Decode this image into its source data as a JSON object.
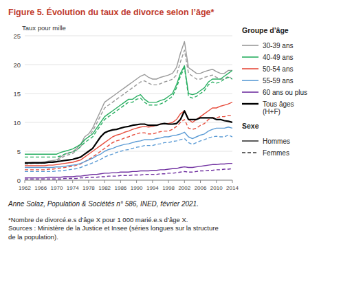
{
  "chart_data": {
    "type": "line",
    "title": "Figure 5. Évolution du taux de divorce selon l’âge*",
    "title_color": "#c0392b",
    "y_label": "Taux pour mille",
    "footnotes": [
      "Anne Solaz, Population & Sociétés n° 586, INED, février 2021.",
      "*Nombre de divorcé.e.s d’âge X pour 1 000 marié.e.s d’âge X.\nSources : Ministère de la Justice et Insee (séries longues sur la structure\nde la population)."
    ],
    "legend_titles": [
      "Groupe d’âge",
      "Sexe"
    ],
    "legend_color": "#333333",
    "grid": true,
    "xlim": [
      1962,
      2014
    ],
    "xticks": [
      1962,
      1966,
      1970,
      1974,
      1978,
      1982,
      1986,
      1990,
      1994,
      1998,
      2002,
      2006,
      2010,
      2014
    ],
    "ylim": [
      0,
      25
    ],
    "yticks": [
      0,
      5,
      10,
      15,
      20,
      25
    ],
    "x": [
      1962,
      1963,
      1964,
      1965,
      1966,
      1967,
      1968,
      1969,
      1970,
      1971,
      1972,
      1973,
      1974,
      1975,
      1976,
      1977,
      1978,
      1979,
      1980,
      1981,
      1982,
      1983,
      1984,
      1985,
      1986,
      1987,
      1988,
      1989,
      1990,
      1991,
      1992,
      1993,
      1994,
      1995,
      1996,
      1997,
      1998,
      1999,
      2000,
      2001,
      2002,
      2003,
      2004,
      2005,
      2006,
      2007,
      2008,
      2009,
      2010,
      2011,
      2012,
      2013,
      2014
    ],
    "series": [
      {
        "name": "30-39 ans",
        "sex": "Hommes",
        "color": "#999999",
        "line_style": "solid",
        "values": [
          3.0,
          3.0,
          3.1,
          3.1,
          3.1,
          3.2,
          3.3,
          3.4,
          3.5,
          4.0,
          4.5,
          4.7,
          4.9,
          5.5,
          6.2,
          7.5,
          8.0,
          9.0,
          10.5,
          12.0,
          13.5,
          14.0,
          14.5,
          15.0,
          15.5,
          16.0,
          16.5,
          17.0,
          17.5,
          18.0,
          18.3,
          17.8,
          17.5,
          17.5,
          17.8,
          18.0,
          18.2,
          18.5,
          19.5,
          22.0,
          24.0,
          19.5,
          19.0,
          18.5,
          18.5,
          18.8,
          19.0,
          19.2,
          18.8,
          18.5,
          18.5,
          19.0,
          19.0
        ]
      },
      {
        "name": "30-39 ans",
        "sex": "Femmes",
        "color": "#999999",
        "line_style": "dashed",
        "values": [
          2.8,
          2.8,
          2.9,
          2.9,
          2.9,
          3.0,
          3.1,
          3.2,
          3.3,
          3.7,
          4.2,
          4.4,
          4.6,
          5.2,
          5.8,
          7.0,
          7.5,
          8.5,
          9.8,
          11.2,
          12.5,
          13.0,
          13.5,
          14.0,
          14.5,
          15.0,
          15.5,
          16.0,
          16.5,
          17.0,
          17.2,
          16.8,
          16.5,
          16.5,
          16.7,
          17.0,
          17.2,
          17.5,
          18.2,
          20.5,
          22.5,
          18.5,
          18.0,
          17.5,
          17.5,
          17.8,
          18.0,
          18.2,
          17.8,
          17.5,
          17.5,
          18.0,
          17.5
        ]
      },
      {
        "name": "40-49 ans",
        "sex": "Hommes",
        "color": "#27ae60",
        "line_style": "solid",
        "values": [
          4.5,
          4.5,
          4.5,
          4.5,
          4.5,
          4.5,
          4.5,
          4.5,
          4.5,
          4.8,
          5.0,
          5.2,
          5.4,
          5.8,
          6.2,
          7.0,
          7.5,
          8.0,
          9.0,
          10.0,
          11.0,
          11.5,
          12.0,
          12.5,
          13.0,
          13.5,
          14.0,
          14.0,
          14.5,
          14.8,
          14.0,
          13.5,
          13.5,
          13.5,
          13.8,
          14.0,
          14.5,
          15.0,
          16.5,
          18.5,
          19.8,
          15.0,
          14.8,
          15.0,
          15.5,
          16.0,
          17.0,
          17.5,
          17.5,
          17.5,
          18.0,
          18.5,
          19.0
        ]
      },
      {
        "name": "40-49 ans",
        "sex": "Femmes",
        "color": "#27ae60",
        "line_style": "dashed",
        "values": [
          4.0,
          4.0,
          4.0,
          4.0,
          4.0,
          4.0,
          4.0,
          4.0,
          4.0,
          4.2,
          4.5,
          4.7,
          4.9,
          5.2,
          5.8,
          6.5,
          7.0,
          7.5,
          8.5,
          9.5,
          10.5,
          11.0,
          11.5,
          12.0,
          12.5,
          13.0,
          13.5,
          13.5,
          14.0,
          14.2,
          13.5,
          13.0,
          13.0,
          13.0,
          13.2,
          13.5,
          14.0,
          14.5,
          16.0,
          18.0,
          19.5,
          14.5,
          14.2,
          14.5,
          15.0,
          15.5,
          16.5,
          17.0,
          16.8,
          17.0,
          17.5,
          17.8,
          17.5
        ]
      },
      {
        "name": "50-54 ans",
        "sex": "Hommes",
        "color": "#e74c3c",
        "line_style": "solid",
        "values": [
          2.5,
          2.5,
          2.5,
          2.5,
          2.5,
          2.5,
          2.6,
          2.6,
          2.7,
          2.8,
          2.9,
          3.0,
          3.1,
          3.3,
          3.5,
          4.0,
          4.5,
          5.0,
          5.5,
          6.0,
          6.5,
          7.0,
          7.5,
          7.8,
          8.0,
          8.3,
          8.5,
          8.8,
          9.0,
          9.2,
          9.3,
          9.2,
          9.3,
          9.5,
          9.7,
          9.8,
          9.8,
          10.0,
          10.5,
          11.5,
          12.0,
          10.5,
          10.0,
          10.5,
          11.0,
          11.5,
          12.0,
          12.5,
          12.5,
          12.8,
          13.0,
          13.2,
          13.5
        ]
      },
      {
        "name": "50-54 ans",
        "sex": "Femmes",
        "color": "#e74c3c",
        "line_style": "dashed",
        "values": [
          1.8,
          1.8,
          1.8,
          1.8,
          1.8,
          1.8,
          1.9,
          1.9,
          2.0,
          2.1,
          2.2,
          2.3,
          2.4,
          2.6,
          2.8,
          3.2,
          3.6,
          4.0,
          4.5,
          5.0,
          5.5,
          6.0,
          6.5,
          6.8,
          7.0,
          7.3,
          7.5,
          7.8,
          8.0,
          8.2,
          8.2,
          8.0,
          8.0,
          8.2,
          8.4,
          8.5,
          8.5,
          8.8,
          9.3,
          10.0,
          10.5,
          9.0,
          8.8,
          9.0,
          9.5,
          9.8,
          10.5,
          10.8,
          10.8,
          11.0,
          11.0,
          11.2,
          11.2
        ]
      },
      {
        "name": "55-59 ans",
        "sex": "Hommes",
        "color": "#5b9bd5",
        "line_style": "solid",
        "values": [
          2.2,
          2.2,
          2.2,
          2.2,
          2.2,
          2.2,
          2.2,
          2.2,
          2.3,
          2.3,
          2.4,
          2.5,
          2.6,
          2.7,
          2.9,
          3.2,
          3.5,
          3.8,
          4.2,
          4.5,
          5.0,
          5.3,
          5.5,
          5.8,
          6.0,
          6.2,
          6.3,
          6.5,
          6.7,
          6.8,
          7.0,
          7.0,
          7.0,
          7.2,
          7.3,
          7.5,
          7.5,
          7.7,
          7.8,
          8.0,
          8.3,
          7.5,
          7.2,
          7.5,
          7.8,
          8.0,
          8.5,
          8.8,
          9.0,
          9.0,
          9.0,
          9.2,
          9.0
        ]
      },
      {
        "name": "55-59 ans",
        "sex": "Femmes",
        "color": "#5b9bd5",
        "line_style": "dashed",
        "values": [
          1.5,
          1.5,
          1.5,
          1.5,
          1.5,
          1.5,
          1.5,
          1.5,
          1.6,
          1.6,
          1.7,
          1.8,
          1.9,
          2.0,
          2.2,
          2.5,
          2.7,
          3.0,
          3.3,
          3.6,
          4.0,
          4.3,
          4.5,
          4.8,
          5.0,
          5.2,
          5.3,
          5.5,
          5.7,
          5.8,
          6.0,
          6.0,
          6.0,
          6.2,
          6.3,
          6.5,
          6.5,
          6.7,
          6.8,
          7.0,
          7.2,
          6.5,
          6.2,
          6.5,
          6.8,
          7.0,
          7.3,
          7.5,
          7.6,
          7.5,
          7.5,
          7.8,
          7.5
        ]
      },
      {
        "name": "60 ans ou plus",
        "sex": "Hommes",
        "color": "#7030a0",
        "line_style": "solid",
        "values": [
          0.4,
          0.4,
          0.4,
          0.4,
          0.4,
          0.4,
          0.5,
          0.5,
          0.5,
          0.5,
          0.6,
          0.6,
          0.6,
          0.7,
          0.7,
          0.8,
          0.9,
          1.0,
          1.0,
          1.1,
          1.2,
          1.2,
          1.3,
          1.3,
          1.4,
          1.4,
          1.4,
          1.5,
          1.5,
          1.6,
          1.6,
          1.6,
          1.7,
          1.7,
          1.8,
          1.8,
          1.9,
          2.0,
          2.0,
          2.2,
          2.3,
          2.2,
          2.2,
          2.3,
          2.4,
          2.5,
          2.6,
          2.7,
          2.7,
          2.8,
          2.8,
          2.9,
          2.9
        ]
      },
      {
        "name": "60 ans ou plus",
        "sex": "Femmes",
        "color": "#7030a0",
        "line_style": "dashed",
        "values": [
          0.2,
          0.2,
          0.2,
          0.2,
          0.2,
          0.2,
          0.2,
          0.2,
          0.2,
          0.2,
          0.3,
          0.3,
          0.3,
          0.3,
          0.4,
          0.4,
          0.5,
          0.5,
          0.5,
          0.6,
          0.6,
          0.7,
          0.7,
          0.7,
          0.8,
          0.8,
          0.8,
          0.9,
          0.9,
          0.9,
          1.0,
          1.0,
          1.0,
          1.0,
          1.1,
          1.1,
          1.2,
          1.2,
          1.3,
          1.4,
          1.5,
          1.4,
          1.4,
          1.5,
          1.6,
          1.6,
          1.7,
          1.7,
          1.8,
          1.8,
          1.9,
          1.9,
          2.0
        ]
      },
      {
        "name": "Tous âges\n(H+F)",
        "color": "#000000",
        "line_style": "solid",
        "values": [
          3.0,
          3.0,
          3.0,
          3.0,
          3.0,
          3.0,
          3.1,
          3.1,
          3.2,
          3.3,
          3.4,
          3.5,
          3.6,
          3.8,
          4.0,
          4.5,
          5.0,
          5.5,
          6.5,
          7.5,
          8.2,
          8.5,
          8.7,
          8.8,
          9.0,
          9.2,
          9.3,
          9.5,
          9.6,
          9.7,
          9.7,
          9.5,
          9.5,
          9.5,
          9.7,
          9.8,
          9.7,
          9.7,
          9.8,
          10.5,
          12.0,
          10.5,
          10.5,
          10.5,
          10.8,
          10.8,
          10.8,
          10.8,
          10.5,
          10.5,
          10.3,
          10.2,
          10.0
        ]
      }
    ]
  }
}
